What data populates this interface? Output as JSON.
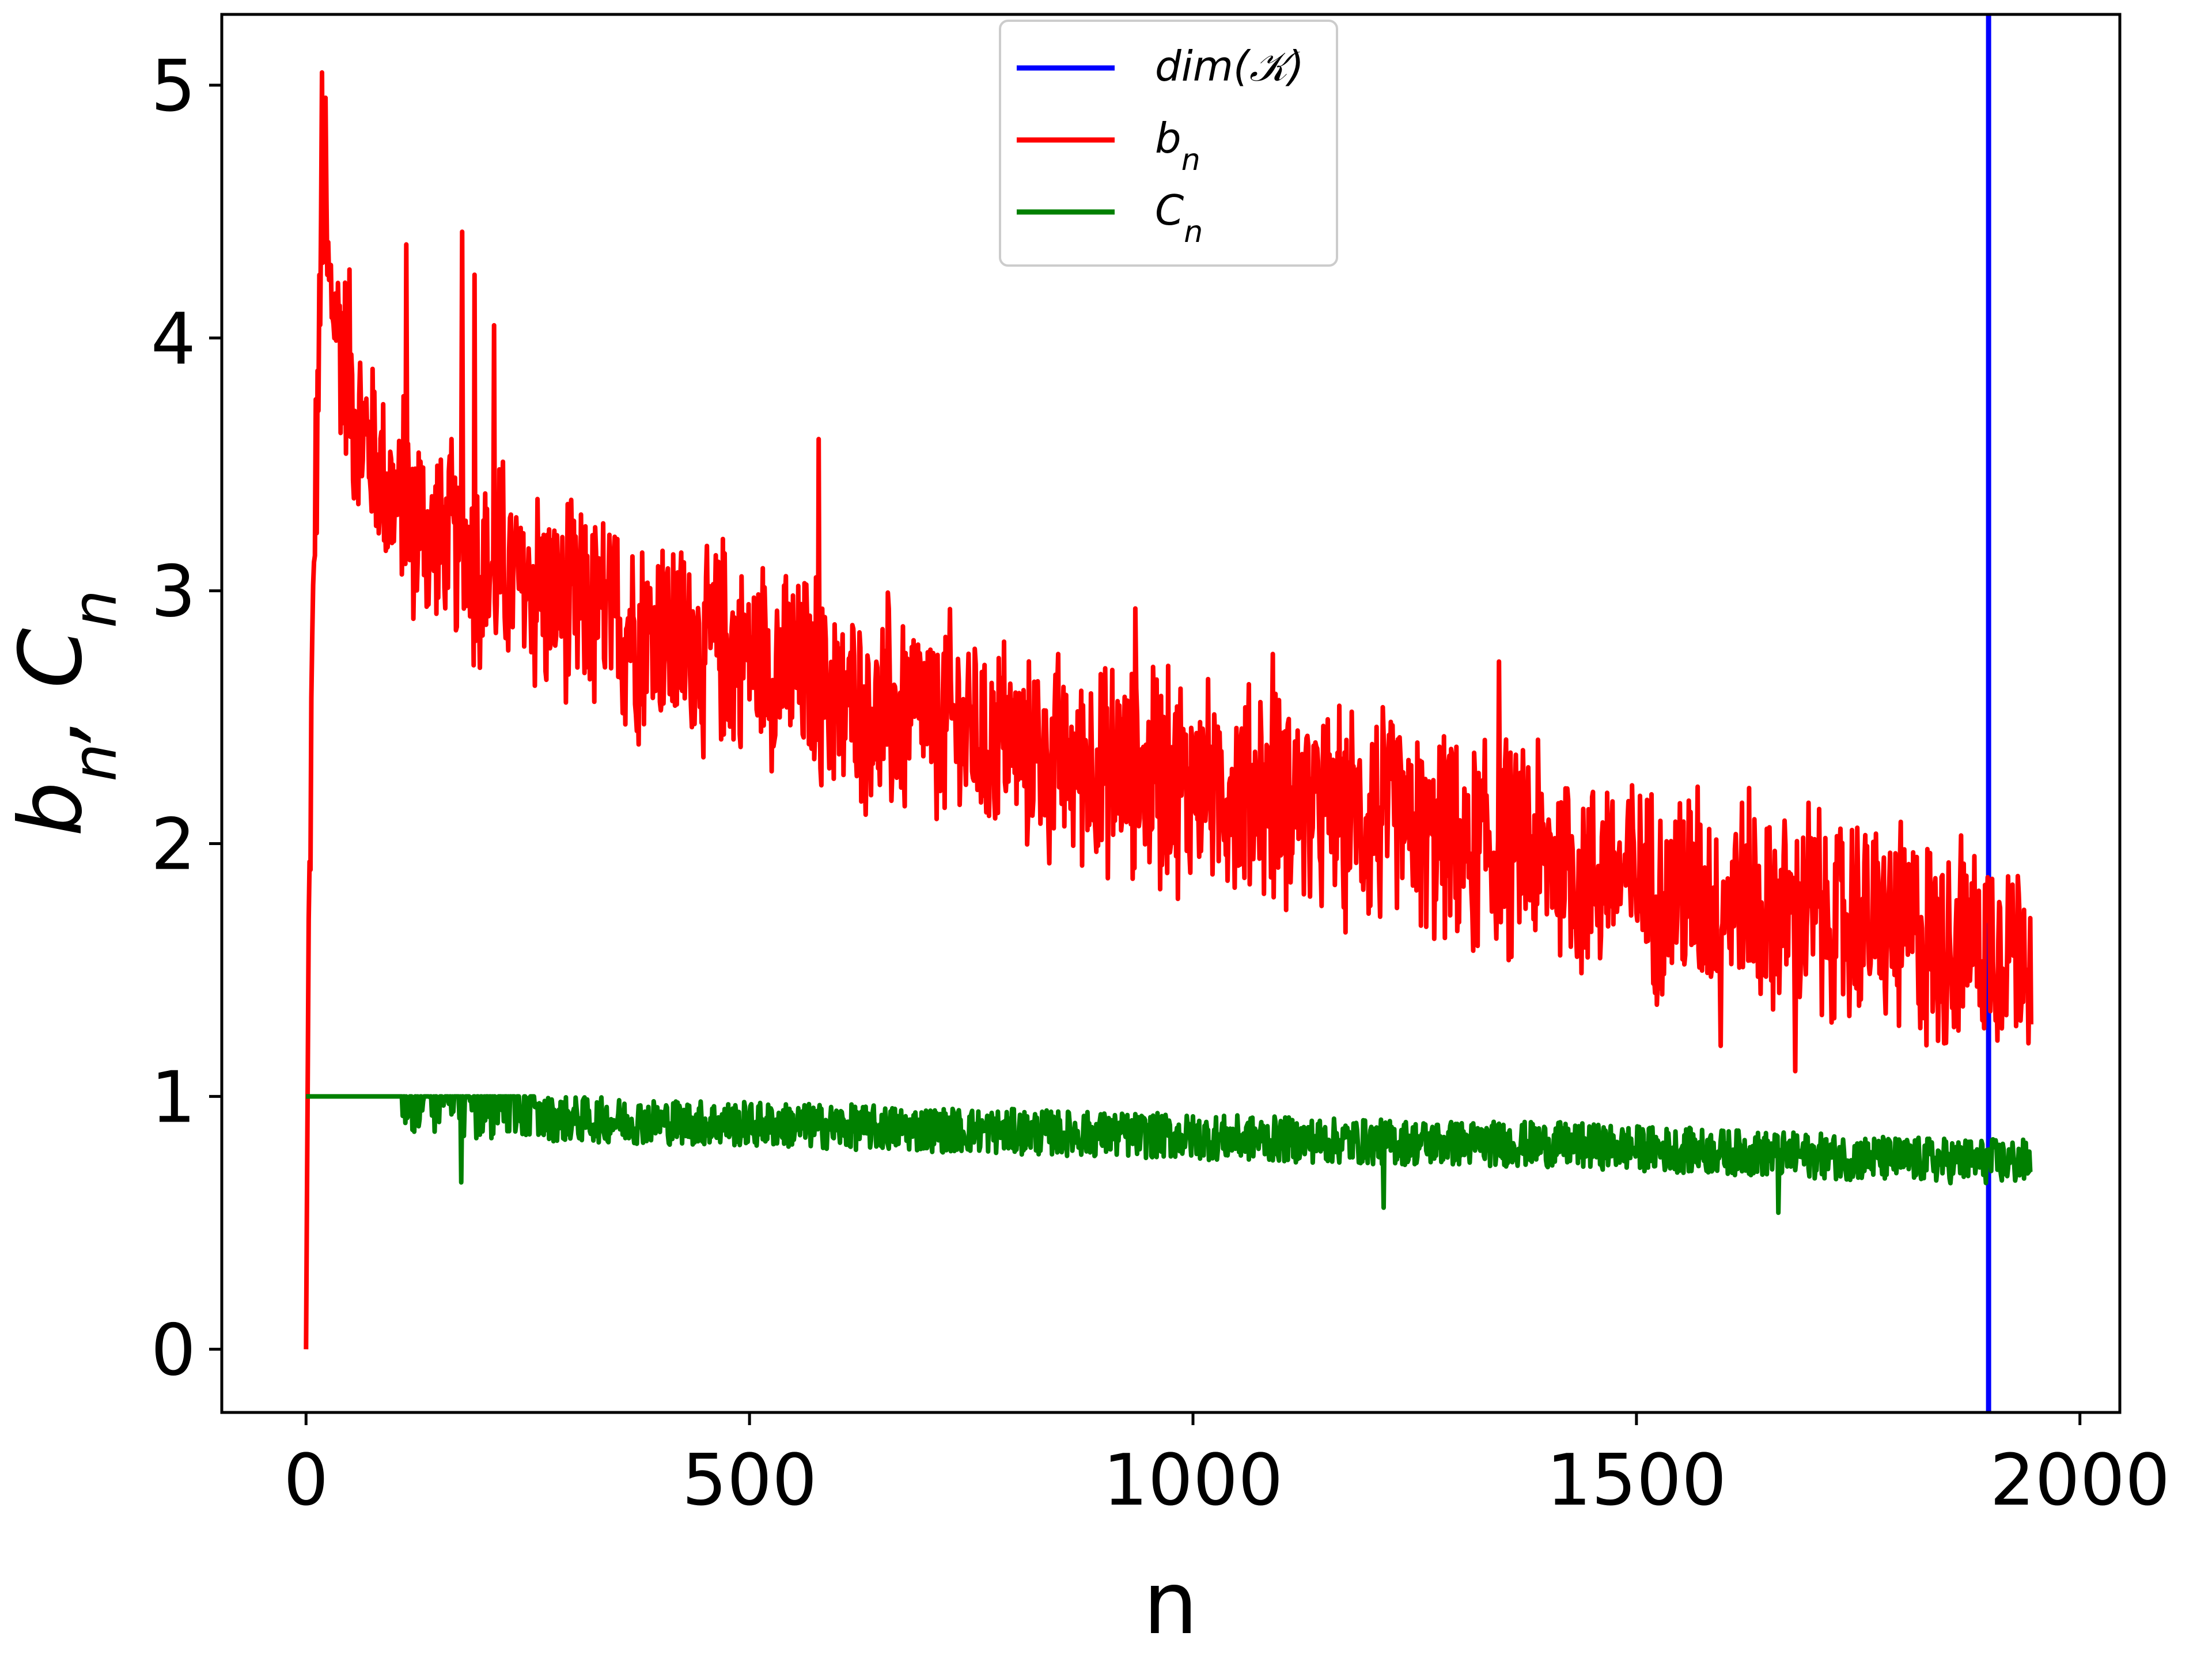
{
  "chart_data": {
    "type": "line",
    "xlabel": "n",
    "ylabel": "b_n, C_n",
    "xlim": [
      -95,
      2045
    ],
    "ylim": [
      -0.25,
      5.28
    ],
    "xticks": [
      0,
      500,
      1000,
      1500,
      2000
    ],
    "xtick_labels": [
      "0",
      "500",
      "1000",
      "1500",
      "2000"
    ],
    "yticks": [
      0,
      1,
      2,
      3,
      4,
      5
    ],
    "ytick_labels": [
      "0",
      "1",
      "2",
      "3",
      "4",
      "5"
    ],
    "grid": false,
    "legend_position": "top-center",
    "legend": [
      {
        "label": "dim(𝒦)",
        "color": "#0000ff"
      },
      {
        "label": "b",
        "sub": "n",
        "color": "#ff0000"
      },
      {
        "label": "C",
        "sub": "n",
        "color": "#008000"
      }
    ],
    "series": [
      {
        "name": "dim(𝒦)",
        "color": "#0000ff",
        "kind": "vline",
        "x": 1897
      },
      {
        "name": "b_n",
        "color": "#ff0000",
        "kind": "line",
        "anchors_x": [
          0,
          3,
          10,
          18,
          25,
          40,
          60,
          100,
          150,
          200,
          300,
          400,
          500,
          600,
          700,
          800,
          900,
          1000,
          1100,
          1200,
          1300,
          1400,
          1500,
          1600,
          1700,
          1800,
          1900,
          1945
        ],
        "anchors_y": [
          0,
          1.7,
          3.3,
          4.4,
          4.2,
          4.0,
          3.65,
          3.35,
          3.2,
          3.1,
          2.95,
          2.8,
          2.75,
          2.58,
          2.5,
          2.38,
          2.3,
          2.25,
          2.2,
          2.1,
          2.0,
          1.95,
          1.85,
          1.78,
          1.72,
          1.65,
          1.62,
          1.6
        ],
        "noise_amplitude": 0.35,
        "peaks": [
          [
            18,
            5.05
          ],
          [
            22,
            4.95
          ],
          [
            113,
            4.37
          ],
          [
            176,
            4.42
          ],
          [
            190,
            4.25
          ],
          [
            212,
            4.05
          ],
          [
            578,
            3.6
          ],
          [
            935,
            2.93
          ],
          [
            1090,
            2.75
          ],
          [
            1345,
            2.72
          ],
          [
            1679,
            1.1
          ],
          [
            1595,
            1.2
          ]
        ]
      },
      {
        "name": "C_n",
        "color": "#008000",
        "kind": "line",
        "anchors_x": [
          0,
          105,
          110,
          200,
          400,
          600,
          800,
          1000,
          1200,
          1400,
          1600,
          1800,
          1945
        ],
        "anchors_y": [
          1.0,
          1.0,
          0.95,
          0.92,
          0.9,
          0.88,
          0.86,
          0.84,
          0.82,
          0.81,
          0.78,
          0.75,
          0.74
        ],
        "noise_amplitude": 0.09,
        "min_values": [
          [
            175,
            0.66
          ],
          [
            1660,
            0.54
          ],
          [
            1215,
            0.56
          ]
        ]
      }
    ]
  }
}
